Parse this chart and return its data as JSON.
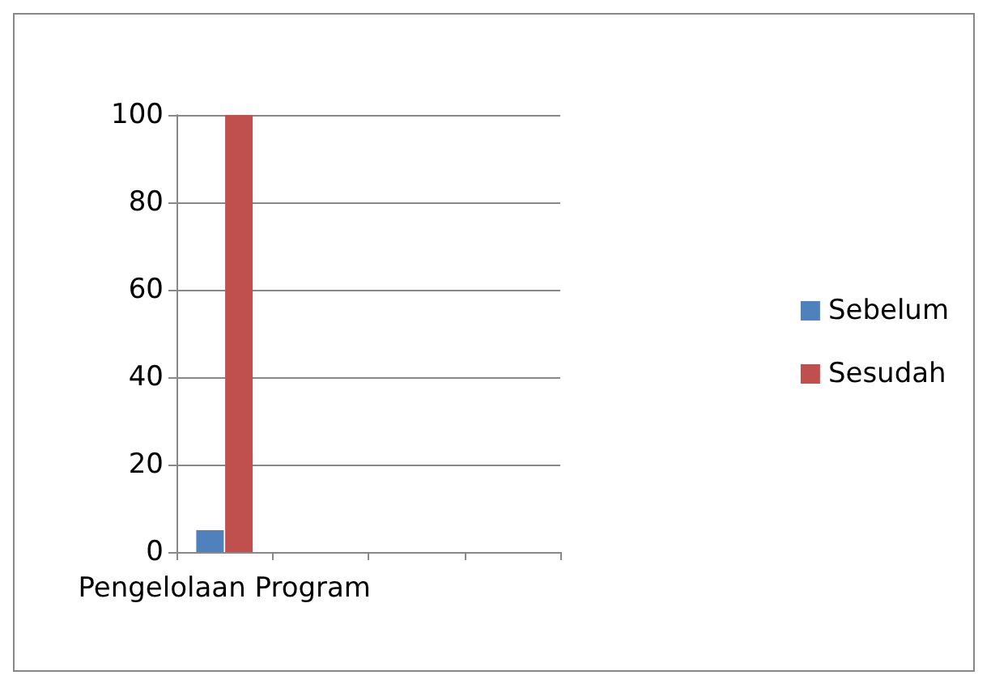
{
  "chart_data": {
    "type": "bar",
    "categories": [
      "Pengelolaan Program",
      null,
      null,
      null
    ],
    "series": [
      {
        "name": "Sebelum",
        "color": "#4f81bd",
        "values": [
          5,
          null,
          null,
          null
        ]
      },
      {
        "name": "Sesudah",
        "color": "#c0504d",
        "values": [
          100,
          null,
          null,
          null
        ]
      }
    ],
    "ylim": [
      0,
      100
    ],
    "yticks": [
      0,
      20,
      40,
      60,
      80,
      100
    ],
    "grid": "y",
    "legend": "right"
  }
}
